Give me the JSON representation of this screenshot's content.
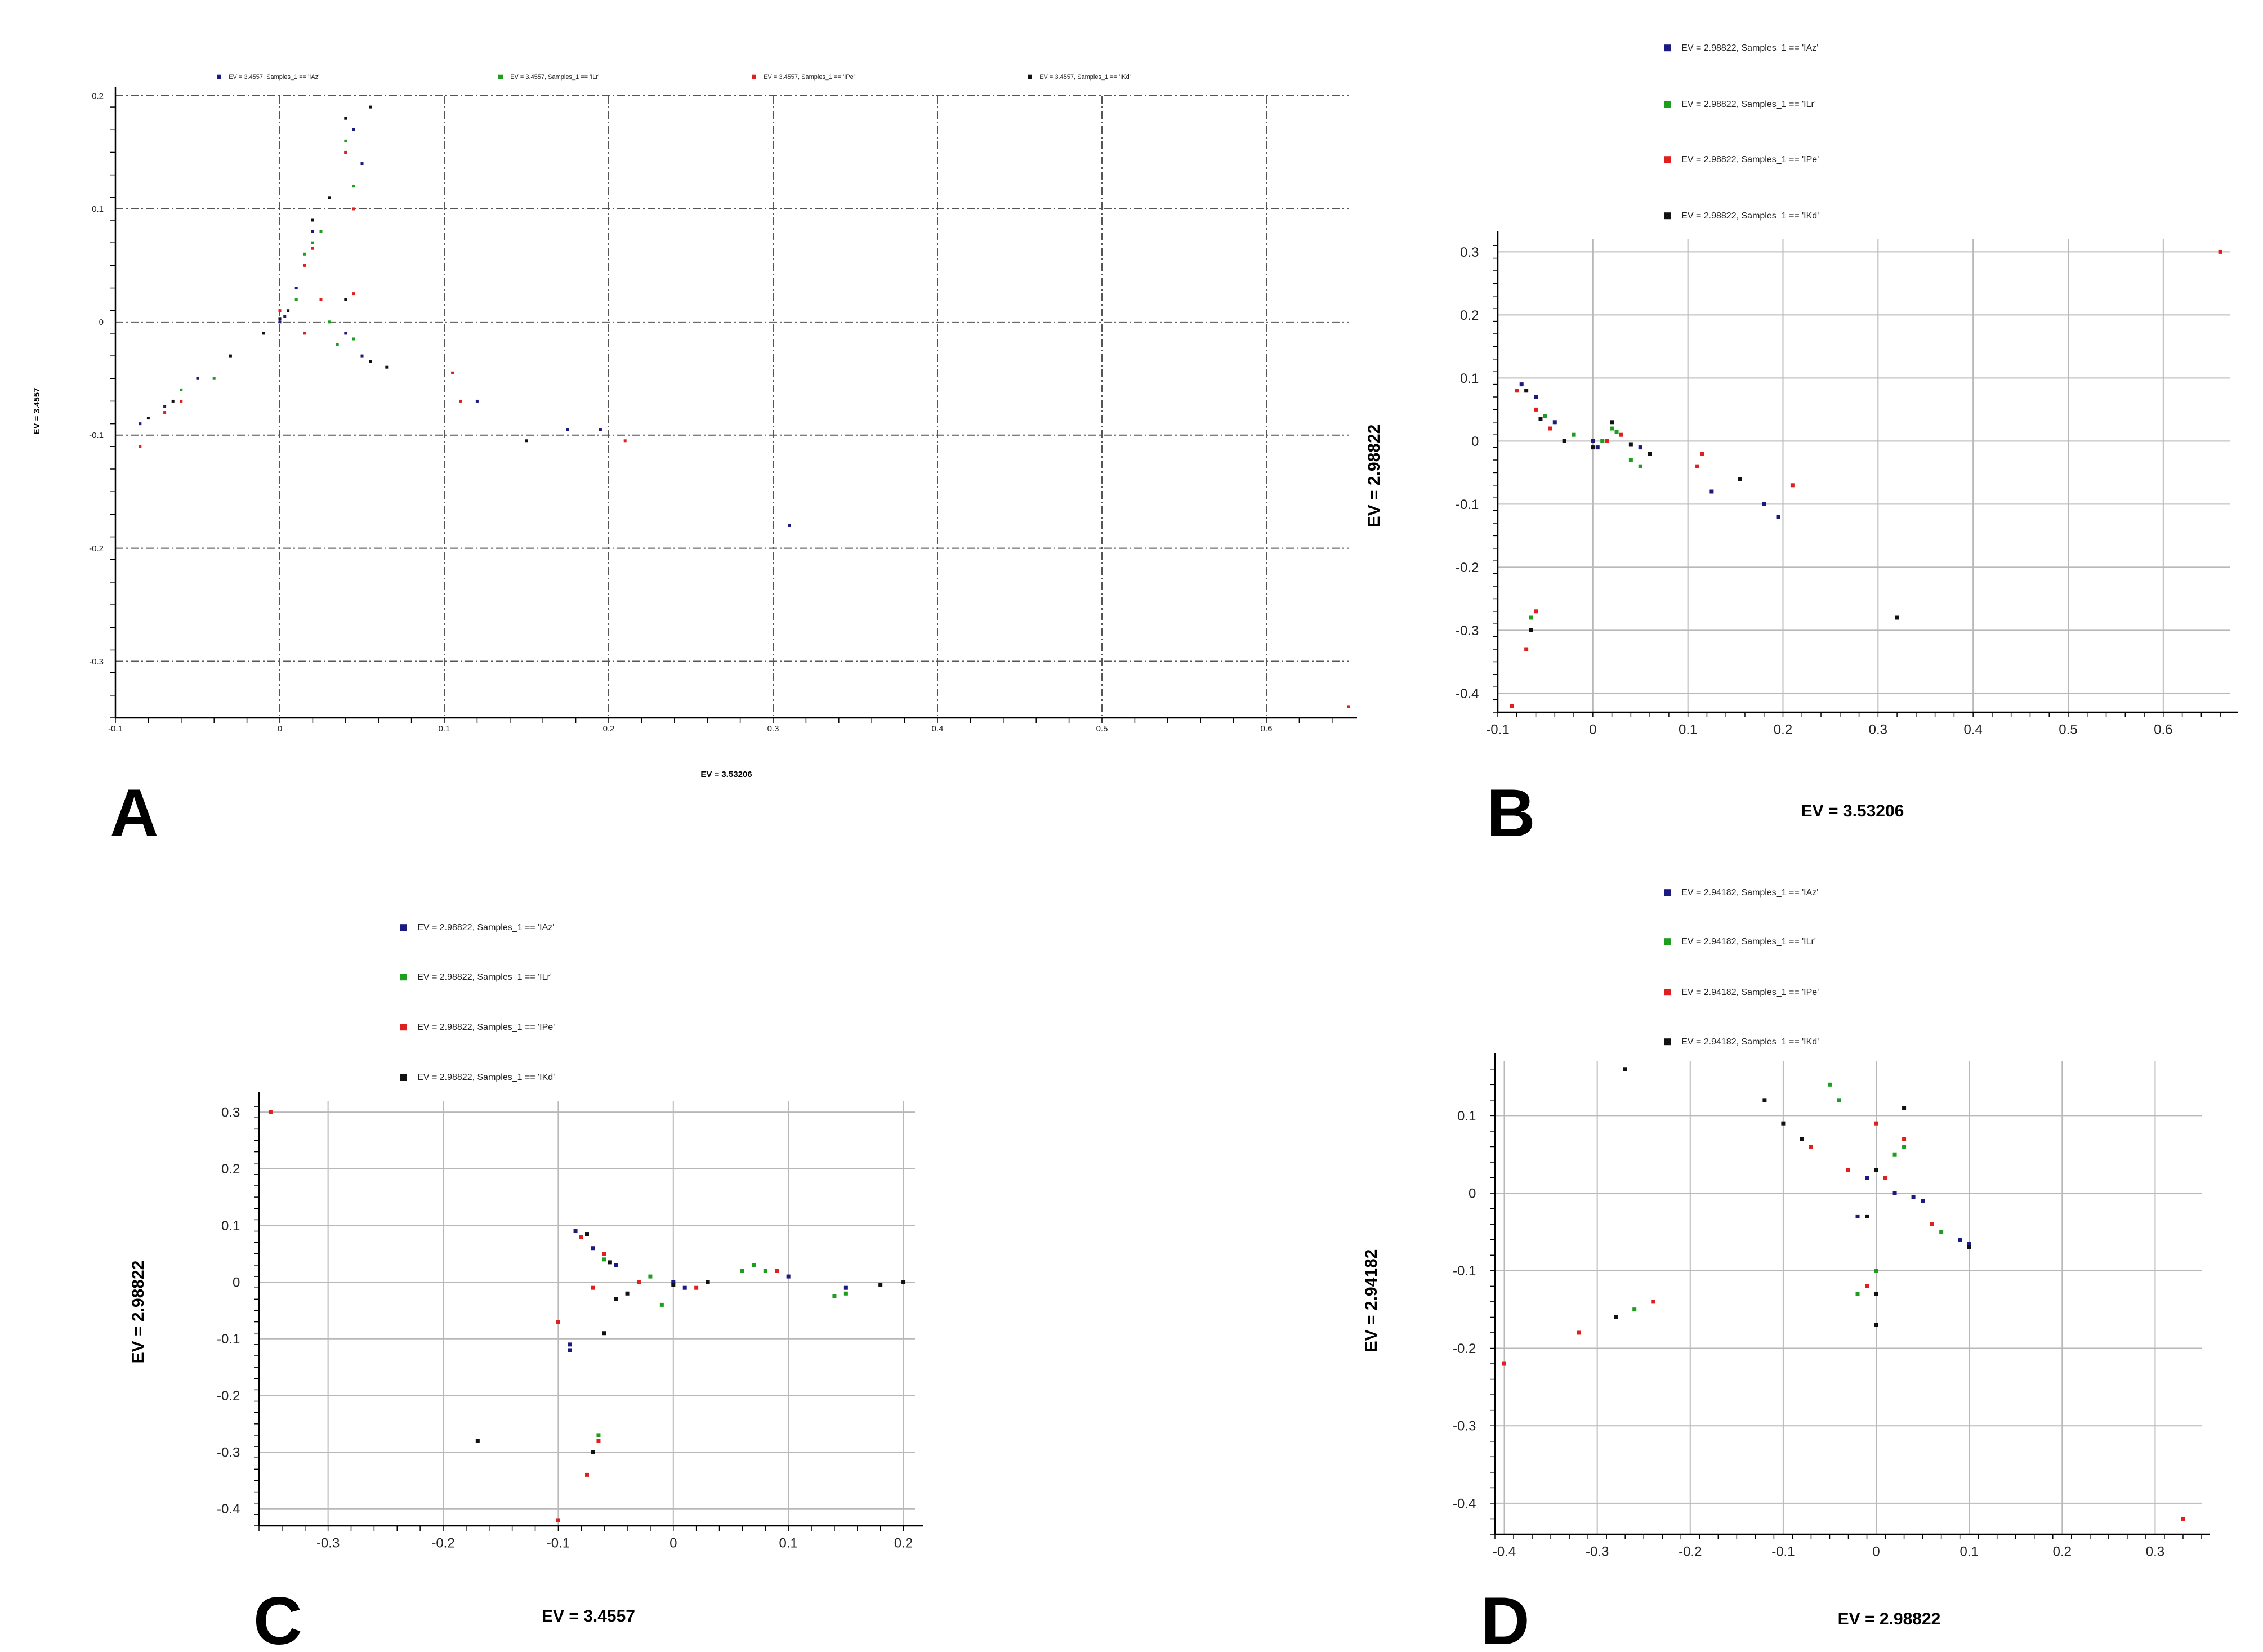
{
  "chart_data": [
    {
      "panel_label": "A",
      "type": "scatter",
      "xlabel": "EV = 3.53206",
      "ylabel": "EV = 3.4557",
      "xlim": [
        -0.1,
        0.65
      ],
      "ylim": [
        -0.35,
        0.2
      ],
      "xticks": [
        -0.1,
        0,
        0.1,
        0.2,
        0.3,
        0.4,
        0.5,
        0.6
      ],
      "yticks": [
        -0.3,
        -0.2,
        -0.1,
        0,
        0.1,
        0.2
      ],
      "grid": true,
      "legend_position": "top",
      "series": [
        {
          "name": "EV = 3.4557, Samples_1 == 'IAz'",
          "color": "#1a1a80",
          "points": [
            [
              -0.085,
              -0.09
            ],
            [
              -0.07,
              -0.075
            ],
            [
              -0.05,
              -0.05
            ],
            [
              0.0,
              0.0
            ],
            [
              0.003,
              0.005
            ],
            [
              0.01,
              0.03
            ],
            [
              0.02,
              0.08
            ],
            [
              0.04,
              0.15
            ],
            [
              0.045,
              0.17
            ],
            [
              0.05,
              0.14
            ],
            [
              0.04,
              -0.01
            ],
            [
              0.05,
              -0.03
            ],
            [
              0.12,
              -0.07
            ],
            [
              0.175,
              -0.095
            ],
            [
              0.195,
              -0.095
            ],
            [
              0.31,
              -0.18
            ]
          ]
        },
        {
          "name": "EV = 3.4557, Samples_1 == 'ILr'",
          "color": "#1e9e1e",
          "points": [
            [
              -0.06,
              -0.06
            ],
            [
              -0.04,
              -0.05
            ],
            [
              0.01,
              0.02
            ],
            [
              0.015,
              0.06
            ],
            [
              0.02,
              0.07
            ],
            [
              0.025,
              0.08
            ],
            [
              0.04,
              0.16
            ],
            [
              0.045,
              0.12
            ],
            [
              0.035,
              -0.02
            ],
            [
              0.045,
              -0.015
            ],
            [
              0.03,
              0.0
            ]
          ]
        },
        {
          "name": "EV = 3.4557, Samples_1 == 'IPe'",
          "color": "#e02020",
          "points": [
            [
              -0.085,
              -0.11
            ],
            [
              -0.07,
              -0.08
            ],
            [
              -0.06,
              -0.07
            ],
            [
              0.0,
              0.01
            ],
            [
              0.015,
              0.05
            ],
            [
              0.02,
              0.065
            ],
            [
              0.04,
              0.15
            ],
            [
              0.045,
              0.1
            ],
            [
              0.025,
              0.02
            ],
            [
              0.045,
              0.025
            ],
            [
              0.015,
              -0.01
            ],
            [
              0.105,
              -0.045
            ],
            [
              0.11,
              -0.07
            ],
            [
              0.21,
              -0.105
            ],
            [
              0.65,
              -0.34
            ]
          ]
        },
        {
          "name": "EV = 3.4557, Samples_1 == 'IKd'",
          "color": "#111111",
          "points": [
            [
              -0.08,
              -0.085
            ],
            [
              -0.065,
              -0.07
            ],
            [
              -0.03,
              -0.03
            ],
            [
              -0.01,
              -0.01
            ],
            [
              0.0,
              0.003
            ],
            [
              0.005,
              0.01
            ],
            [
              0.02,
              0.09
            ],
            [
              0.03,
              0.11
            ],
            [
              0.04,
              0.18
            ],
            [
              0.055,
              0.19
            ],
            [
              0.04,
              0.02
            ],
            [
              0.055,
              -0.035
            ],
            [
              0.065,
              -0.04
            ],
            [
              0.15,
              -0.105
            ]
          ]
        }
      ]
    },
    {
      "panel_label": "B",
      "type": "scatter",
      "xlabel": "EV = 3.53206",
      "ylabel": "EV = 2.98822",
      "xlim": [
        -0.1,
        0.67
      ],
      "ylim": [
        -0.43,
        0.32
      ],
      "xticks": [
        -0.1,
        0,
        0.1,
        0.2,
        0.3,
        0.4,
        0.5,
        0.6
      ],
      "yticks": [
        -0.4,
        -0.3,
        -0.2,
        -0.1,
        0,
        0.1,
        0.2,
        0.3
      ],
      "grid": true,
      "legend_position": "top",
      "series": [
        {
          "name": "EV = 2.98822, Samples_1 == 'IAz'",
          "color": "#1a1a80",
          "points": [
            [
              -0.075,
              0.09
            ],
            [
              -0.06,
              0.07
            ],
            [
              -0.04,
              0.03
            ],
            [
              0.0,
              0.0
            ],
            [
              0.005,
              -0.01
            ],
            [
              0.05,
              -0.01
            ],
            [
              0.125,
              -0.08
            ],
            [
              0.195,
              -0.12
            ],
            [
              0.18,
              -0.1
            ]
          ]
        },
        {
          "name": "EV = 2.98822, Samples_1 == 'ILr'",
          "color": "#1e9e1e",
          "points": [
            [
              -0.05,
              0.04
            ],
            [
              -0.02,
              0.01
            ],
            [
              0.02,
              0.02
            ],
            [
              0.025,
              0.015
            ],
            [
              0.04,
              -0.03
            ],
            [
              0.05,
              -0.04
            ],
            [
              -0.065,
              -0.28
            ],
            [
              0.01,
              0.0
            ]
          ]
        },
        {
          "name": "EV = 2.98822, Samples_1 == 'IPe'",
          "color": "#e02020",
          "points": [
            [
              -0.08,
              0.08
            ],
            [
              -0.06,
              0.05
            ],
            [
              -0.045,
              0.02
            ],
            [
              0.015,
              0.0
            ],
            [
              0.03,
              0.01
            ],
            [
              0.11,
              -0.04
            ],
            [
              0.115,
              -0.02
            ],
            [
              0.21,
              -0.07
            ],
            [
              -0.06,
              -0.27
            ],
            [
              -0.07,
              -0.33
            ],
            [
              -0.085,
              -0.42
            ],
            [
              0.66,
              0.3
            ]
          ]
        },
        {
          "name": "EV = 2.98822, Samples_1 == 'IKd'",
          "color": "#111111",
          "points": [
            [
              -0.07,
              0.08
            ],
            [
              -0.055,
              0.035
            ],
            [
              -0.03,
              0.0
            ],
            [
              0.0,
              -0.01
            ],
            [
              0.04,
              -0.005
            ],
            [
              0.06,
              -0.02
            ],
            [
              0.155,
              -0.06
            ],
            [
              -0.065,
              -0.3
            ],
            [
              0.32,
              -0.28
            ],
            [
              0.02,
              0.03
            ]
          ]
        }
      ]
    },
    {
      "panel_label": "C",
      "type": "scatter",
      "xlabel": "EV = 3.4557",
      "ylabel": "EV = 2.98822",
      "xlim": [
        -0.36,
        0.21
      ],
      "ylim": [
        -0.43,
        0.32
      ],
      "xticks": [
        -0.3,
        -0.2,
        -0.1,
        0,
        0.1,
        0.2
      ],
      "yticks": [
        -0.4,
        -0.3,
        -0.2,
        -0.1,
        0,
        0.1,
        0.2,
        0.3
      ],
      "grid": true,
      "legend_position": "top",
      "series": [
        {
          "name": "EV = 2.98822, Samples_1 == 'IAz'",
          "color": "#1a1a80",
          "points": [
            [
              -0.085,
              0.09
            ],
            [
              -0.07,
              0.06
            ],
            [
              -0.05,
              0.03
            ],
            [
              0.0,
              0.0
            ],
            [
              0.01,
              -0.01
            ],
            [
              0.1,
              0.01
            ],
            [
              0.15,
              -0.01
            ],
            [
              -0.09,
              -0.11
            ],
            [
              -0.09,
              -0.12
            ]
          ]
        },
        {
          "name": "EV = 2.98822, Samples_1 == 'ILr'",
          "color": "#1e9e1e",
          "points": [
            [
              -0.06,
              0.04
            ],
            [
              -0.02,
              0.01
            ],
            [
              0.06,
              0.02
            ],
            [
              0.07,
              0.03
            ],
            [
              0.08,
              0.02
            ],
            [
              0.15,
              -0.02
            ],
            [
              0.14,
              -0.025
            ],
            [
              -0.065,
              -0.27
            ],
            [
              -0.01,
              -0.04
            ]
          ]
        },
        {
          "name": "EV = 2.98822, Samples_1 == 'IPe'",
          "color": "#e02020",
          "points": [
            [
              -0.08,
              0.08
            ],
            [
              -0.06,
              0.05
            ],
            [
              -0.03,
              0.0
            ],
            [
              0.02,
              -0.01
            ],
            [
              0.09,
              0.02
            ],
            [
              -0.07,
              -0.01
            ],
            [
              -0.1,
              -0.07
            ],
            [
              -0.065,
              -0.28
            ],
            [
              -0.075,
              -0.34
            ],
            [
              -0.1,
              -0.42
            ],
            [
              -0.35,
              0.3
            ]
          ]
        },
        {
          "name": "EV = 2.98822, Samples_1 == 'IKd'",
          "color": "#111111",
          "points": [
            [
              -0.075,
              0.085
            ],
            [
              -0.055,
              0.035
            ],
            [
              -0.04,
              -0.02
            ],
            [
              0.0,
              -0.005
            ],
            [
              0.03,
              0.0
            ],
            [
              0.18,
              -0.005
            ],
            [
              0.2,
              0.0
            ],
            [
              -0.06,
              -0.09
            ],
            [
              -0.17,
              -0.28
            ],
            [
              -0.07,
              -0.3
            ],
            [
              -0.05,
              -0.03
            ]
          ]
        }
      ]
    },
    {
      "panel_label": "D",
      "type": "scatter",
      "xlabel": "EV = 2.98822",
      "ylabel": "EV = 2.94182",
      "xlim": [
        -0.41,
        0.35
      ],
      "ylim": [
        -0.44,
        0.17
      ],
      "xticks": [
        -0.4,
        -0.3,
        -0.2,
        -0.1,
        0,
        0.1,
        0.2,
        0.3
      ],
      "yticks": [
        -0.4,
        -0.3,
        -0.2,
        -0.1,
        0,
        0.1
      ],
      "grid": true,
      "legend_position": "top",
      "series": [
        {
          "name": "EV = 2.94182, Samples_1 == 'IAz'",
          "color": "#1a1a80",
          "points": [
            [
              -0.02,
              -0.03
            ],
            [
              0.0,
              0.03
            ],
            [
              0.02,
              0.0
            ],
            [
              0.04,
              -0.005
            ],
            [
              0.05,
              -0.01
            ],
            [
              0.09,
              -0.06
            ],
            [
              0.1,
              -0.065
            ],
            [
              -0.01,
              0.02
            ]
          ]
        },
        {
          "name": "EV = 2.94182, Samples_1 == 'ILr'",
          "color": "#1e9e1e",
          "points": [
            [
              -0.05,
              0.14
            ],
            [
              -0.04,
              0.12
            ],
            [
              0.02,
              0.05
            ],
            [
              0.03,
              0.06
            ],
            [
              0.07,
              -0.05
            ],
            [
              -0.02,
              -0.13
            ],
            [
              0.0,
              -0.1
            ],
            [
              0.01,
              0.02
            ],
            [
              -0.26,
              -0.15
            ]
          ]
        },
        {
          "name": "EV = 2.94182, Samples_1 == 'IPe'",
          "color": "#e02020",
          "points": [
            [
              -0.07,
              0.06
            ],
            [
              -0.03,
              0.03
            ],
            [
              0.0,
              0.09
            ],
            [
              0.03,
              0.07
            ],
            [
              0.01,
              0.02
            ],
            [
              0.06,
              -0.04
            ],
            [
              -0.24,
              -0.14
            ],
            [
              -0.32,
              -0.18
            ],
            [
              -0.4,
              -0.22
            ],
            [
              0.33,
              -0.42
            ],
            [
              -0.01,
              -0.12
            ]
          ]
        },
        {
          "name": "EV = 2.94182, Samples_1 == 'IKd'",
          "color": "#111111",
          "points": [
            [
              -0.27,
              0.16
            ],
            [
              -0.12,
              0.12
            ],
            [
              -0.1,
              0.09
            ],
            [
              -0.08,
              0.07
            ],
            [
              0.03,
              0.11
            ],
            [
              0.0,
              0.03
            ],
            [
              0.0,
              -0.17
            ],
            [
              -0.28,
              -0.16
            ],
            [
              0.0,
              -0.13
            ],
            [
              0.1,
              -0.07
            ],
            [
              -0.01,
              -0.03
            ]
          ]
        }
      ]
    }
  ]
}
